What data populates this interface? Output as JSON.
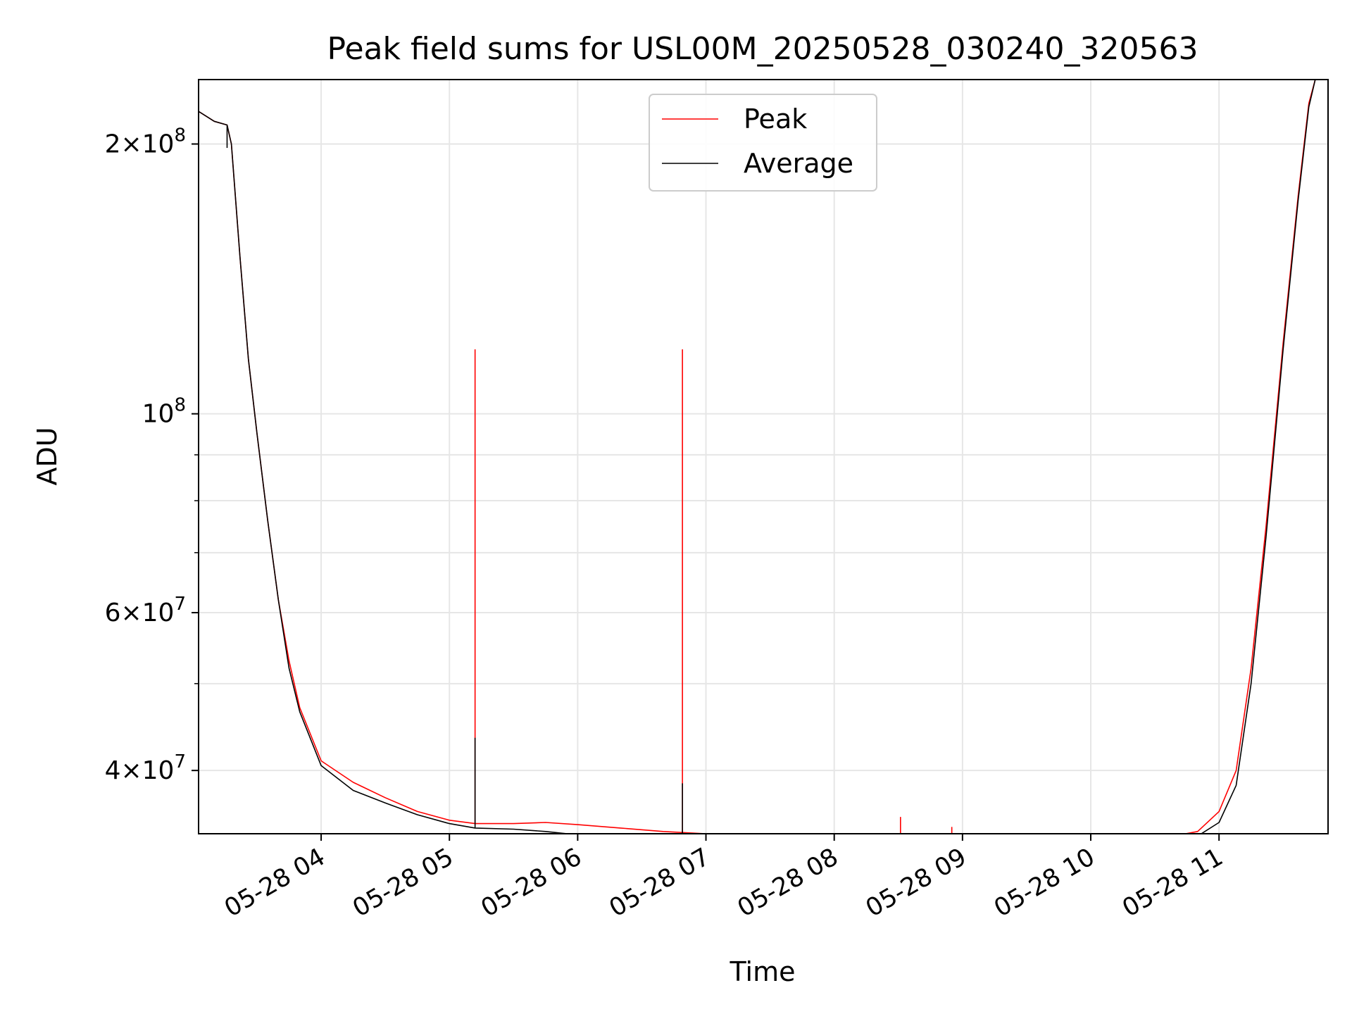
{
  "chart_data": {
    "type": "line",
    "title": "Peak field sums for USL00M_20250528_030240_320563",
    "xlabel": "Time",
    "ylabel": "ADU",
    "yscale": "log",
    "ylim": [
      34000000,
      236000000
    ],
    "xlim": [
      "2025-05-28 03:02:40",
      "2025-05-28 11:51:00"
    ],
    "grid": true,
    "legend_position": "top-center",
    "x_ticks": [
      {
        "t": "2025-05-28 04:00",
        "label": "05-28 04"
      },
      {
        "t": "2025-05-28 05:00",
        "label": "05-28 05"
      },
      {
        "t": "2025-05-28 06:00",
        "label": "05-28 06"
      },
      {
        "t": "2025-05-28 07:00",
        "label": "05-28 07"
      },
      {
        "t": "2025-05-28 08:00",
        "label": "05-28 08"
      },
      {
        "t": "2025-05-28 09:00",
        "label": "05-28 09"
      },
      {
        "t": "2025-05-28 10:00",
        "label": "05-28 10"
      },
      {
        "t": "2025-05-28 11:00",
        "label": "05-28 11"
      }
    ],
    "y_ticks": [
      {
        "v": 40000000,
        "mant": "4",
        "exp": "7"
      },
      {
        "v": 60000000,
        "mant": "6",
        "exp": "7"
      },
      {
        "v": 100000000,
        "mant": "",
        "exp": "8"
      },
      {
        "v": 200000000,
        "mant": "2",
        "exp": "8"
      }
    ],
    "y_minor_ticks": [
      50000000,
      70000000,
      80000000,
      90000000
    ],
    "series": [
      {
        "name": "Peak",
        "color": "#ff0000",
        "points": [
          [
            "2025-05-28 03:02",
            218000000
          ],
          [
            "2025-05-28 03:10",
            212000000
          ],
          [
            "2025-05-28 03:16",
            210000000
          ],
          [
            "2025-05-28 03:18",
            200000000
          ],
          [
            "2025-05-28 03:22",
            150000000
          ],
          [
            "2025-05-28 03:26",
            115000000
          ],
          [
            "2025-05-28 03:30",
            95000000
          ],
          [
            "2025-05-28 03:35",
            76000000
          ],
          [
            "2025-05-28 03:40",
            62000000
          ],
          [
            "2025-05-28 03:45",
            53000000
          ],
          [
            "2025-05-28 03:50",
            47000000
          ],
          [
            "2025-05-28 04:00",
            41000000
          ],
          [
            "2025-05-28 04:15",
            38800000
          ],
          [
            "2025-05-28 04:30",
            37300000
          ],
          [
            "2025-05-28 04:45",
            36000000
          ],
          [
            "2025-05-28 05:00",
            35200000
          ],
          [
            "2025-05-28 05:12",
            34900000
          ],
          [
            "2025-05-28 05:30",
            34900000
          ],
          [
            "2025-05-28 05:45",
            35000000
          ],
          [
            "2025-05-28 06:00",
            34800000
          ],
          [
            "2025-05-28 06:20",
            34500000
          ],
          [
            "2025-05-28 06:40",
            34200000
          ],
          [
            "2025-05-28 07:00",
            34000000
          ],
          [
            "2025-05-28 07:30",
            33800000
          ],
          [
            "2025-05-28 08:00",
            33800000
          ],
          [
            "2025-05-28 08:30",
            33900000
          ],
          [
            "2025-05-28 09:00",
            33900000
          ],
          [
            "2025-05-28 09:30",
            33800000
          ],
          [
            "2025-05-28 09:55",
            33700000
          ],
          [
            "2025-05-28 10:00",
            33500000
          ],
          [
            "2025-05-28 10:30",
            33500000
          ],
          [
            "2025-05-28 10:50",
            34200000
          ],
          [
            "2025-05-28 11:00",
            36000000
          ],
          [
            "2025-05-28 11:08",
            40000000
          ],
          [
            "2025-05-28 11:15",
            52000000
          ],
          [
            "2025-05-28 11:22",
            75000000
          ],
          [
            "2025-05-28 11:30",
            120000000
          ],
          [
            "2025-05-28 11:37",
            175000000
          ],
          [
            "2025-05-28 11:42",
            222000000
          ],
          [
            "2025-05-28 11:45",
            236000000
          ]
        ],
        "spikes": [
          [
            "2025-05-28 05:12",
            118000000
          ],
          [
            "2025-05-28 06:49",
            118000000
          ],
          [
            "2025-05-28 08:31",
            35500000
          ],
          [
            "2025-05-28 08:55",
            34600000
          ]
        ]
      },
      {
        "name": "Average",
        "color": "#000000",
        "points": [
          [
            "2025-05-28 03:02",
            218000000
          ],
          [
            "2025-05-28 03:10",
            212000000
          ],
          [
            "2025-05-28 03:16",
            210000000
          ],
          [
            "2025-05-28 03:18",
            200000000
          ],
          [
            "2025-05-28 03:22",
            150000000
          ],
          [
            "2025-05-28 03:26",
            115000000
          ],
          [
            "2025-05-28 03:30",
            95000000
          ],
          [
            "2025-05-28 03:35",
            76000000
          ],
          [
            "2025-05-28 03:40",
            62000000
          ],
          [
            "2025-05-28 03:45",
            52000000
          ],
          [
            "2025-05-28 03:50",
            46500000
          ],
          [
            "2025-05-28 04:00",
            40500000
          ],
          [
            "2025-05-28 04:15",
            38000000
          ],
          [
            "2025-05-28 04:30",
            36800000
          ],
          [
            "2025-05-28 04:45",
            35700000
          ],
          [
            "2025-05-28 05:00",
            34900000
          ],
          [
            "2025-05-28 05:12",
            34500000
          ],
          [
            "2025-05-28 05:30",
            34400000
          ],
          [
            "2025-05-28 05:45",
            34200000
          ],
          [
            "2025-05-28 06:00",
            33900000
          ],
          [
            "2025-05-28 06:20",
            33700000
          ],
          [
            "2025-05-28 06:40",
            33500000
          ],
          [
            "2025-05-28 07:00",
            33300000
          ],
          [
            "2025-05-28 07:30",
            33300000
          ],
          [
            "2025-05-28 08:00",
            33400000
          ],
          [
            "2025-05-28 08:30",
            33600000
          ],
          [
            "2025-05-28 09:00",
            33500000
          ],
          [
            "2025-05-28 09:30",
            33300000
          ],
          [
            "2025-05-28 09:55",
            33300000
          ],
          [
            "2025-05-28 10:00",
            33200000
          ],
          [
            "2025-05-28 10:30",
            33300000
          ],
          [
            "2025-05-28 10:50",
            33800000
          ],
          [
            "2025-05-28 11:00",
            35000000
          ],
          [
            "2025-05-28 11:08",
            38500000
          ],
          [
            "2025-05-28 11:15",
            50000000
          ],
          [
            "2025-05-28 11:22",
            73000000
          ],
          [
            "2025-05-28 11:30",
            118000000
          ],
          [
            "2025-05-28 11:37",
            173000000
          ],
          [
            "2025-05-28 11:42",
            220000000
          ],
          [
            "2025-05-28 11:45",
            236000000
          ]
        ],
        "spikes": [
          [
            "2025-05-28 03:16",
            198000000
          ],
          [
            "2025-05-28 05:12",
            43500000
          ],
          [
            "2025-05-28 06:49",
            38700000
          ]
        ]
      }
    ]
  }
}
